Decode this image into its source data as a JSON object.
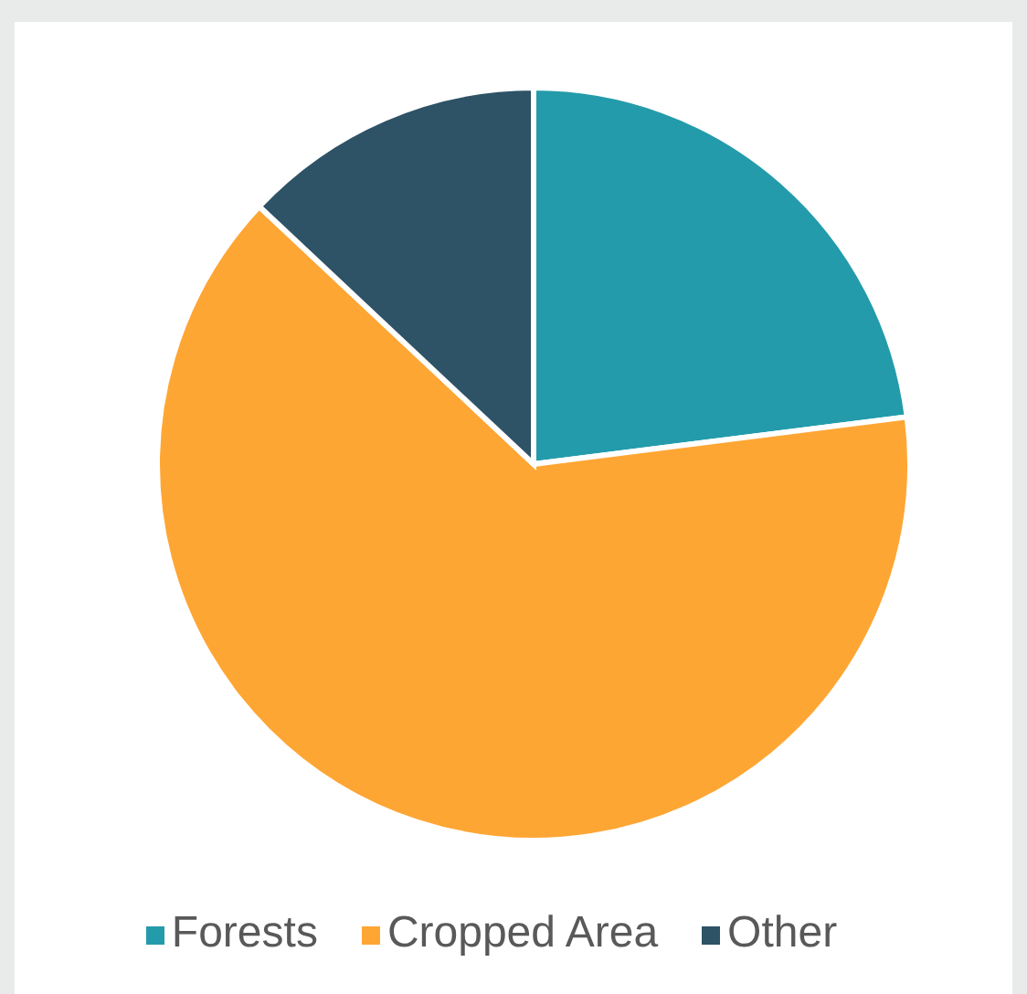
{
  "chart_data": {
    "type": "pie",
    "categories": [
      "Forests",
      "Cropped Area",
      "Other"
    ],
    "values": [
      23,
      64,
      13
    ],
    "colors": [
      "#239bab",
      "#fea634",
      "#2e5266"
    ],
    "legend": "bottom"
  }
}
